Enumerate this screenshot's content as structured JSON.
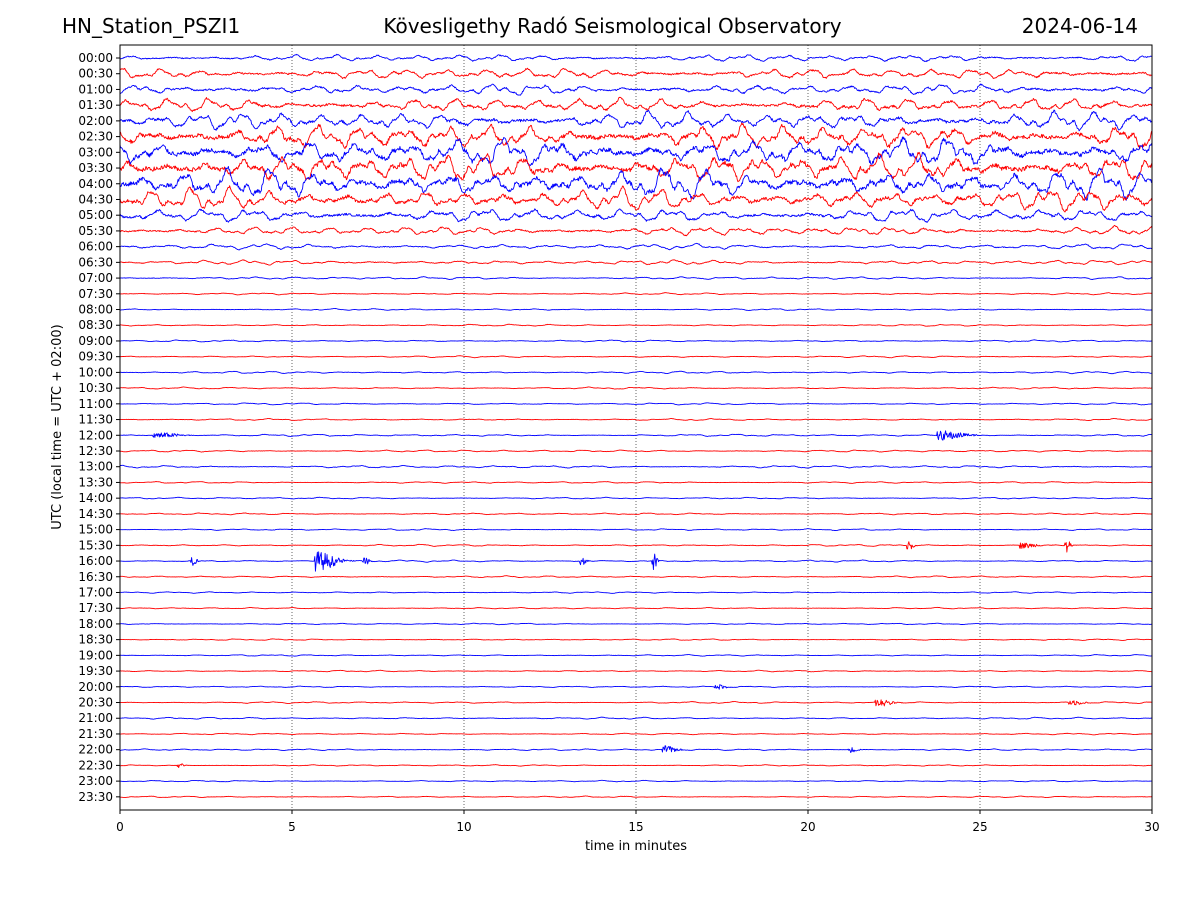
{
  "header": {
    "station": "HN_Station_PSZI1",
    "title": "Kövesligethy Radó Seismological Observatory",
    "date": "2024-06-14"
  },
  "chart_data": {
    "type": "line",
    "xlabel": "time in minutes",
    "ylabel": "UTC (local time = UTC + 02:00)",
    "xlim": [
      0,
      30
    ],
    "x_ticks": [
      "0",
      "5",
      "10",
      "15",
      "20",
      "25",
      "30"
    ],
    "grid": "vertical dotted lines at 5-minute intervals",
    "row_interval_minutes": 30,
    "row_labels": [
      "00:00",
      "00:30",
      "01:00",
      "01:30",
      "02:00",
      "02:30",
      "03:00",
      "03:30",
      "04:00",
      "04:30",
      "05:00",
      "05:30",
      "06:00",
      "06:30",
      "07:00",
      "07:30",
      "08:00",
      "08:30",
      "09:00",
      "09:30",
      "10:00",
      "10:30",
      "11:00",
      "11:30",
      "12:00",
      "12:30",
      "13:00",
      "13:30",
      "14:00",
      "14:30",
      "15:00",
      "15:30",
      "16:00",
      "16:30",
      "17:00",
      "17:30",
      "18:00",
      "18:30",
      "19:00",
      "19:30",
      "20:00",
      "20:30",
      "21:00",
      "21:30",
      "22:00",
      "22:30",
      "23:00",
      "23:30"
    ],
    "trace_colors": [
      "#0000ff",
      "#ff0000"
    ],
    "background_amplitude": [
      4,
      6,
      6,
      8,
      10,
      14,
      16,
      16,
      16,
      12,
      8,
      5,
      3,
      2.5,
      1.5,
      1,
      1,
      1,
      1,
      1,
      1.2,
      1,
      1,
      1,
      1.2,
      1.2,
      1.5,
      1,
      1,
      1,
      1,
      1,
      1,
      1,
      0.8,
      0.8,
      0.8,
      0.8,
      0.8,
      0.8,
      0.8,
      1,
      1,
      0.8,
      1,
      0.8,
      0.8,
      0.8
    ],
    "events": [
      {
        "row": "12:00",
        "minute": 1.0,
        "duration": 1.5,
        "amplitude": 3
      },
      {
        "row": "12:00",
        "minute": 23.8,
        "duration": 1.5,
        "amplitude": 5
      },
      {
        "row": "15:30",
        "minute": 22.9,
        "duration": 0.3,
        "amplitude": 5
      },
      {
        "row": "15:30",
        "minute": 26.2,
        "duration": 1.0,
        "amplitude": 3
      },
      {
        "row": "15:30",
        "minute": 27.5,
        "duration": 0.3,
        "amplitude": 7
      },
      {
        "row": "16:00",
        "minute": 2.1,
        "duration": 0.3,
        "amplitude": 5
      },
      {
        "row": "16:00",
        "minute": 5.7,
        "duration": 1.2,
        "amplitude": 10
      },
      {
        "row": "16:00",
        "minute": 7.1,
        "duration": 0.3,
        "amplitude": 6
      },
      {
        "row": "16:00",
        "minute": 13.4,
        "duration": 0.3,
        "amplitude": 6
      },
      {
        "row": "16:00",
        "minute": 15.5,
        "duration": 0.2,
        "amplitude": 12
      },
      {
        "row": "20:00",
        "minute": 17.3,
        "duration": 0.6,
        "amplitude": 3
      },
      {
        "row": "20:30",
        "minute": 22.0,
        "duration": 0.8,
        "amplitude": 5
      },
      {
        "row": "20:30",
        "minute": 27.6,
        "duration": 0.8,
        "amplitude": 3
      },
      {
        "row": "22:00",
        "minute": 15.8,
        "duration": 0.8,
        "amplitude": 4
      },
      {
        "row": "22:00",
        "minute": 21.2,
        "duration": 0.5,
        "amplitude": 3
      },
      {
        "row": "22:30",
        "minute": 1.7,
        "duration": 0.3,
        "amplitude": 3
      }
    ]
  }
}
